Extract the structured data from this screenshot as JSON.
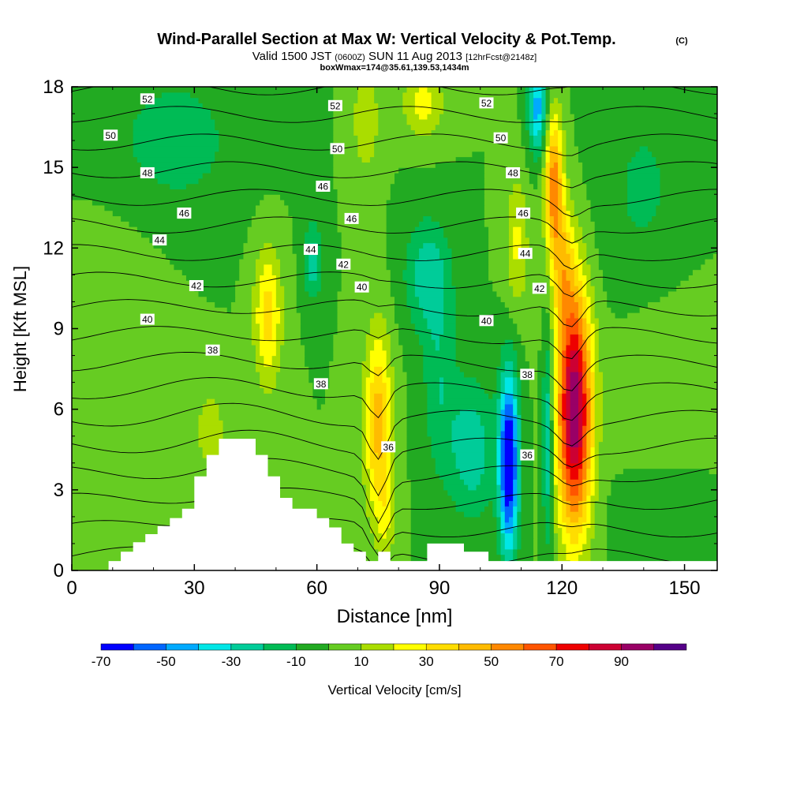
{
  "title": {
    "main": "Wind-Parallel Section at Max W: Vertical Velocity & Pot.Temp.",
    "copyright": "(C)",
    "valid_prefix": "Valid 1500 JST",
    "valid_utc": "(0600Z)",
    "valid_date": "SUN 11 Aug 2013",
    "forecast": "[12hrFcst@2148z]",
    "boxwmax": "boxWmax=174@35.61,139.53,1434m"
  },
  "chart_data": {
    "type": "contour",
    "xlabel": "Distance [nm]",
    "ylabel": "Height [Kft MSL]",
    "xlim": [
      0,
      158
    ],
    "ylim": [
      0,
      18
    ],
    "xticks": [
      "0",
      "30",
      "60",
      "90",
      "120",
      "150"
    ],
    "xtick_values": [
      0,
      30,
      60,
      90,
      120,
      150
    ],
    "yticks": [
      "0",
      "3",
      "6",
      "9",
      "12",
      "15",
      "18"
    ],
    "ytick_values": [
      0,
      3,
      6,
      9,
      12,
      15,
      18
    ],
    "colorbar": {
      "label": "Vertical Velocity [cm/s]",
      "levels": [
        -70,
        -60,
        -50,
        -40,
        -30,
        -20,
        -10,
        0,
        10,
        20,
        30,
        40,
        50,
        60,
        70,
        80,
        90,
        100
      ],
      "tick_labels": [
        "-70",
        "-50",
        "-30",
        "-10",
        "10",
        "30",
        "50",
        "70",
        "90"
      ],
      "tick_values": [
        -70,
        -50,
        -30,
        -10,
        10,
        30,
        50,
        70,
        90
      ],
      "colors": [
        "#0000ff",
        "#0066ff",
        "#00aaff",
        "#00e6e6",
        "#00cc99",
        "#00bb55",
        "#22aa22",
        "#66cc22",
        "#aadd00",
        "#ffff00",
        "#ffdd00",
        "#ffbb00",
        "#ff8800",
        "#ff5500",
        "#ee0000",
        "#cc0033",
        "#990066",
        "#550088"
      ]
    },
    "background_w": 0,
    "w_features": [
      {
        "x": 48,
        "y": 9.5,
        "sx": 2.4,
        "sy": 1.8,
        "w": 35
      },
      {
        "x": 34,
        "y": 5.2,
        "sx": 3.0,
        "sy": 1.4,
        "w": 15
      },
      {
        "x": 75,
        "y": 5.5,
        "sx": 2.4,
        "sy": 2.4,
        "w": 45
      },
      {
        "x": 77,
        "y": 2.0,
        "sx": 1.8,
        "sy": 1.2,
        "w": 15
      },
      {
        "x": 86,
        "y": 17.4,
        "sx": 3.5,
        "sy": 0.9,
        "w": 25
      },
      {
        "x": 72,
        "y": 16.8,
        "sx": 2.5,
        "sy": 1.5,
        "w": 18
      },
      {
        "x": 123,
        "y": 6.0,
        "sx": 3.0,
        "sy": 3.2,
        "w": 100
      },
      {
        "x": 120,
        "y": 11.5,
        "sx": 2.0,
        "sy": 1.6,
        "w": 30
      },
      {
        "x": 118,
        "y": 14.5,
        "sx": 1.6,
        "sy": 1.8,
        "w": 55
      },
      {
        "x": 109,
        "y": 12.2,
        "sx": 2.0,
        "sy": 1.8,
        "w": 22
      },
      {
        "x": 107,
        "y": 4.0,
        "sx": 1.7,
        "sy": 2.4,
        "w": -75
      },
      {
        "x": 116.5,
        "y": 5.0,
        "sx": 0.9,
        "sy": 2.8,
        "w": -35
      },
      {
        "x": 114,
        "y": 17.2,
        "sx": 1.6,
        "sy": 1.2,
        "w": -45
      },
      {
        "x": 98,
        "y": 4.5,
        "sx": 4.0,
        "sy": 1.8,
        "w": -28
      },
      {
        "x": 87,
        "y": 11.0,
        "sx": 4.0,
        "sy": 1.5,
        "w": -26
      },
      {
        "x": 59,
        "y": 11.5,
        "sx": 1.5,
        "sy": 1.0,
        "w": -28
      },
      {
        "x": 25,
        "y": 16.0,
        "sx": 12.0,
        "sy": 2.0,
        "w": -15
      },
      {
        "x": 90,
        "y": 7.0,
        "sx": 3.0,
        "sy": 2.5,
        "w": -18
      },
      {
        "x": 140,
        "y": 14.0,
        "sx": 8.0,
        "sy": 3.0,
        "w": -12
      },
      {
        "x": 145,
        "y": 7.0,
        "sx": 9.0,
        "sy": 3.0,
        "w": 8
      },
      {
        "x": 10,
        "y": 9.0,
        "sx": 8.0,
        "sy": 3.0,
        "w": 8
      },
      {
        "x": 145,
        "y": 2.0,
        "sx": 8.0,
        "sy": 1.5,
        "w": -10
      }
    ],
    "terrain": {
      "x": [
        0,
        9,
        9,
        12,
        12,
        15,
        15,
        18,
        18,
        21,
        21,
        24,
        24,
        27,
        27,
        30,
        30,
        33,
        33,
        36,
        36,
        45,
        45,
        48,
        48,
        51,
        51,
        54,
        54,
        57,
        57,
        60,
        60,
        63,
        63,
        66,
        66,
        69,
        69,
        72,
        72,
        75,
        75,
        78,
        78,
        87,
        87,
        96,
        96,
        102,
        102,
        106,
        106,
        158
      ],
      "y": [
        0,
        0,
        0.35,
        0.35,
        0.7,
        0.7,
        1.05,
        1.05,
        1.35,
        1.35,
        1.65,
        1.65,
        1.95,
        1.95,
        2.3,
        2.3,
        3.5,
        3.5,
        4.3,
        4.3,
        4.9,
        4.9,
        4.3,
        4.3,
        3.5,
        3.5,
        2.7,
        2.7,
        2.3,
        2.3,
        2.3,
        2.3,
        1.95,
        1.95,
        1.6,
        1.6,
        1.0,
        1.0,
        0.7,
        0.7,
        0.35,
        0.35,
        0.7,
        0.7,
        0.35,
        0.35,
        1.0,
        1.0,
        0.7,
        0.7,
        0.35,
        0.35,
        0.35,
        0.35
      ]
    },
    "theta_levels": [
      34,
      35,
      36,
      37,
      38,
      39,
      40,
      41,
      42,
      43,
      44,
      45,
      46,
      47,
      48,
      49,
      50,
      51,
      52,
      53,
      54
    ],
    "theta_labels": [
      {
        "text": "52",
        "x": 18.5,
        "y": 17.55
      },
      {
        "text": "52",
        "x": 64.5,
        "y": 17.3
      },
      {
        "text": "52",
        "x": 101.5,
        "y": 17.4
      },
      {
        "text": "50",
        "x": 9.5,
        "y": 16.2
      },
      {
        "text": "50",
        "x": 65,
        "y": 15.7
      },
      {
        "text": "50",
        "x": 105,
        "y": 16.1
      },
      {
        "text": "48",
        "x": 18.5,
        "y": 14.8
      },
      {
        "text": "48",
        "x": 108,
        "y": 14.8
      },
      {
        "text": "46",
        "x": 27.5,
        "y": 13.3
      },
      {
        "text": "46",
        "x": 61.5,
        "y": 14.3
      },
      {
        "text": "46",
        "x": 68.5,
        "y": 13.1
      },
      {
        "text": "46",
        "x": 110.5,
        "y": 13.3
      },
      {
        "text": "44",
        "x": 21.5,
        "y": 12.3
      },
      {
        "text": "44",
        "x": 58.5,
        "y": 11.95
      },
      {
        "text": "44",
        "x": 111,
        "y": 11.8
      },
      {
        "text": "42",
        "x": 30.5,
        "y": 10.6
      },
      {
        "text": "42",
        "x": 66.5,
        "y": 11.4
      },
      {
        "text": "42",
        "x": 114.5,
        "y": 10.5
      },
      {
        "text": "40",
        "x": 18.5,
        "y": 9.35
      },
      {
        "text": "40",
        "x": 71,
        "y": 10.55
      },
      {
        "text": "40",
        "x": 101.5,
        "y": 9.3
      },
      {
        "text": "38",
        "x": 34.5,
        "y": 8.2
      },
      {
        "text": "38",
        "x": 61,
        "y": 6.95
      },
      {
        "text": "38",
        "x": 111.5,
        "y": 7.3
      },
      {
        "text": "36",
        "x": 77.5,
        "y": 4.6
      },
      {
        "text": "36",
        "x": 111.5,
        "y": 4.3
      }
    ]
  }
}
